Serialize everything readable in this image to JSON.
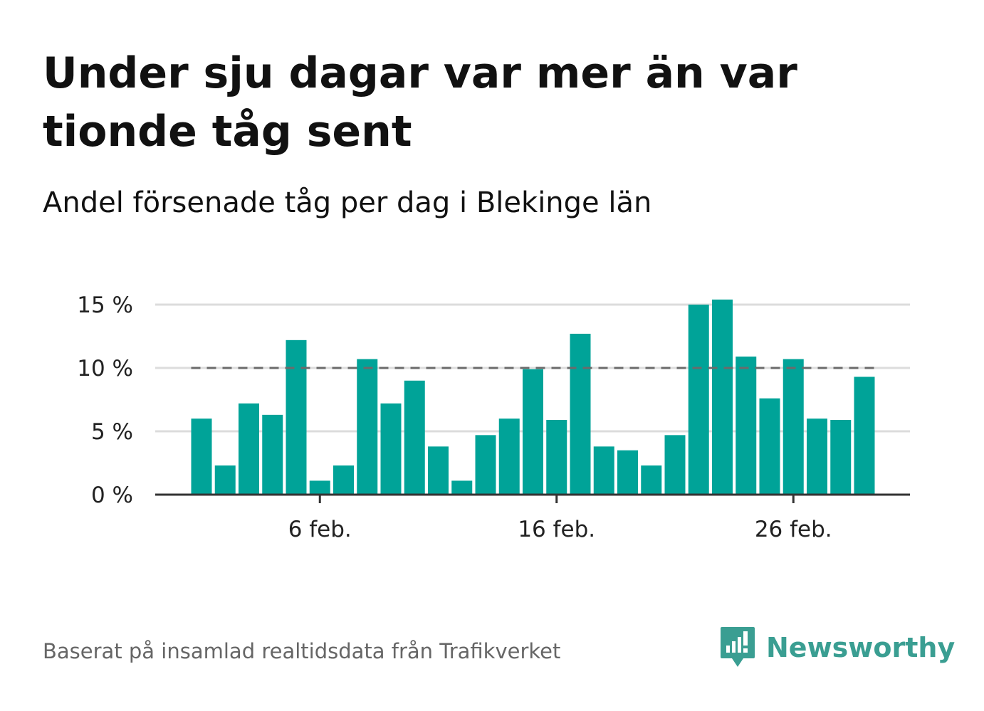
{
  "title": "Under sju dagar var mer än var tionde tåg sent",
  "subtitle": "Andel försenade tåg per dag i Blekinge län",
  "footer": "Baserat på insamlad realtidsdata från Trafikverket",
  "brand": {
    "name": "Newsworthy",
    "icon": "newsworthy-logo-icon",
    "color": "#3a9e92"
  },
  "colors": {
    "bar": "#00a398",
    "grid": "#dcdcdc",
    "axis": "#333333",
    "reference": "#6b6b6b"
  },
  "chart_data": {
    "type": "bar",
    "x_unit": "date",
    "x_tick_labels": [
      "6 feb.",
      "16 feb.",
      "26 feb."
    ],
    "y_tick_labels": [
      "0 %",
      "5 %",
      "10 %",
      "15 %"
    ],
    "ylim": [
      0,
      15.7
    ],
    "reference_line": 10,
    "grid": true,
    "categories": [
      "1 feb.",
      "2 feb.",
      "3 feb.",
      "4 feb.",
      "5 feb.",
      "6 feb.",
      "7 feb.",
      "8 feb.",
      "9 feb.",
      "10 feb.",
      "11 feb.",
      "12 feb.",
      "13 feb.",
      "14 feb.",
      "15 feb.",
      "16 feb.",
      "17 feb.",
      "18 feb.",
      "19 feb.",
      "20 feb.",
      "21 feb.",
      "22 feb.",
      "23 feb.",
      "24 feb.",
      "25 feb.",
      "26 feb.",
      "27 feb.",
      "28 feb.",
      "29 feb."
    ],
    "values": [
      6.0,
      2.3,
      7.2,
      6.3,
      12.2,
      1.1,
      2.3,
      10.7,
      7.2,
      9.0,
      3.8,
      1.1,
      4.7,
      6.0,
      9.9,
      5.9,
      12.7,
      3.8,
      3.5,
      2.3,
      4.7,
      15.0,
      15.4,
      10.9,
      7.6,
      10.7,
      6.0,
      5.9,
      9.3
    ]
  }
}
